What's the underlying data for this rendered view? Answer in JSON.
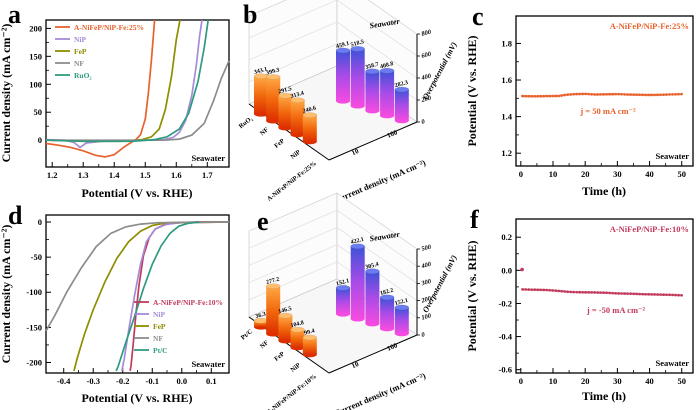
{
  "letters": [
    "a",
    "b",
    "c",
    "d",
    "e",
    "f"
  ],
  "chart_data": [
    {
      "id": "a",
      "type": "line",
      "xlabel": "Potential (V vs. RHE)",
      "ylabel": "Current density (mA cm⁻²)",
      "annotation": "Seawater",
      "xlim": [
        1.18,
        1.77
      ],
      "ylim": [
        -48,
        215
      ],
      "x_ticks": [
        "1.2",
        "1.3",
        "1.4",
        "1.5",
        "1.6",
        "1.7"
      ],
      "y_ticks": [
        "0",
        "50",
        "100",
        "150",
        "200"
      ],
      "legend_position": "top-left",
      "series": [
        {
          "name": "A-NiFeP/NiP-Fe:25%",
          "color": "#E8622D",
          "points": [
            [
              1.18,
              -6
            ],
            [
              1.22,
              -9
            ],
            [
              1.26,
              -13
            ],
            [
              1.3,
              -19
            ],
            [
              1.34,
              -27
            ],
            [
              1.37,
              -30
            ],
            [
              1.4,
              -26
            ],
            [
              1.43,
              -13
            ],
            [
              1.455,
              -4
            ],
            [
              1.47,
              1
            ],
            [
              1.485,
              10
            ],
            [
              1.5,
              38
            ],
            [
              1.51,
              85
            ],
            [
              1.52,
              145
            ],
            [
              1.53,
              215
            ]
          ]
        },
        {
          "name": "NiP",
          "color": "#A58BD8",
          "points": [
            [
              1.18,
              1
            ],
            [
              1.24,
              0
            ],
            [
              1.27,
              -4
            ],
            [
              1.29,
              -13
            ],
            [
              1.31,
              -5
            ],
            [
              1.36,
              -2
            ],
            [
              1.46,
              -1
            ],
            [
              1.56,
              1
            ],
            [
              1.59,
              5
            ],
            [
              1.61,
              14
            ],
            [
              1.63,
              35
            ],
            [
              1.65,
              80
            ],
            [
              1.665,
              135
            ],
            [
              1.675,
              185
            ],
            [
              1.683,
              215
            ]
          ]
        },
        {
          "name": "FeP",
          "color": "#8E8E00",
          "points": [
            [
              1.18,
              0
            ],
            [
              1.3,
              -2
            ],
            [
              1.42,
              -2
            ],
            [
              1.49,
              1
            ],
            [
              1.52,
              6
            ],
            [
              1.545,
              20
            ],
            [
              1.565,
              55
            ],
            [
              1.585,
              115
            ],
            [
              1.6,
              180
            ],
            [
              1.612,
              215
            ]
          ]
        },
        {
          "name": "NF",
          "color": "#8C8C8C",
          "points": [
            [
              1.18,
              0
            ],
            [
              1.4,
              0
            ],
            [
              1.56,
              0
            ],
            [
              1.61,
              2
            ],
            [
              1.65,
              9
            ],
            [
              1.69,
              30
            ],
            [
              1.72,
              70
            ],
            [
              1.745,
              110
            ],
            [
              1.77,
              142
            ]
          ]
        },
        {
          "name": "RuO₂",
          "color": "#2E9B80",
          "points": [
            [
              1.18,
              0
            ],
            [
              1.3,
              -2
            ],
            [
              1.46,
              -2
            ],
            [
              1.53,
              1
            ],
            [
              1.57,
              6
            ],
            [
              1.61,
              20
            ],
            [
              1.64,
              48
            ],
            [
              1.67,
              105
            ],
            [
              1.69,
              165
            ],
            [
              1.703,
              215
            ]
          ]
        }
      ]
    },
    {
      "id": "b",
      "type": "bar3d",
      "zlabel": "Overpotential (mV)",
      "axis_label": "Current density (mA cm⁻²)",
      "annotation": "Seawater",
      "categories": [
        "RuO₂",
        "NF",
        "FeP",
        "NiP",
        "A-NiFeP/NiP-Fe:25%"
      ],
      "zlim": [
        0,
        800
      ],
      "z_ticks": [
        "0",
        "200",
        "400",
        "600",
        "800"
      ],
      "series": [
        {
          "name": "10",
          "values": [
            343.1,
            399.3,
            291.5,
            313.4,
            240.6
          ],
          "gradient": [
            "#FFA845",
            "#F26A0D",
            "#DD2E00"
          ],
          "cap": "#FFBE6E"
        },
        {
          "name": "100",
          "values": [
            459.1,
            518.5,
            358.7,
            408.8,
            282.3
          ],
          "gradient": [
            "#3E52D8",
            "#A94BE8",
            "#F44BE0"
          ],
          "cap": "#6B7BF0"
        }
      ]
    },
    {
      "id": "c",
      "type": "line",
      "xlabel": "Time (h)",
      "ylabel": "Potential (V vs. RHE)",
      "annotation": "Seawater",
      "catalyst": "A-NiFeP/NiP-Fe:25%",
      "catalyst_color": "#E8622D",
      "j_label": "j = 50 mA cm⁻²",
      "j_color": "#E8622D",
      "xlim": [
        -1.5,
        53.5
      ],
      "ylim": [
        1.13,
        1.95
      ],
      "x_ticks": [
        "0",
        "10",
        "20",
        "30",
        "40",
        "50"
      ],
      "y_ticks": [
        "1.2",
        "1.4",
        "1.6",
        "1.8"
      ],
      "series": [
        {
          "name": "A-NiFeP/NiP-Fe:25%",
          "color": "#E8622D",
          "style": "dots",
          "points": [
            [
              0.5,
              1.512
            ],
            [
              4,
              1.511
            ],
            [
              8,
              1.512
            ],
            [
              12,
              1.513
            ],
            [
              14,
              1.519
            ],
            [
              17,
              1.523
            ],
            [
              20,
              1.524
            ],
            [
              23,
              1.521
            ],
            [
              26,
              1.522
            ],
            [
              30,
              1.523
            ],
            [
              33,
              1.521
            ],
            [
              36,
              1.52
            ],
            [
              40,
              1.518
            ],
            [
              43,
              1.519
            ],
            [
              46,
              1.521
            ],
            [
              50,
              1.523
            ]
          ]
        }
      ]
    },
    {
      "id": "d",
      "type": "line",
      "xlabel": "Potential (V vs. RHE)",
      "ylabel": "Current density (mA cm⁻²)",
      "annotation": "Seawater",
      "xlim": [
        -0.46,
        0.16
      ],
      "ylim": [
        -215,
        10
      ],
      "x_ticks": [
        "-0.4",
        "-0.3",
        "-0.2",
        "-0.1",
        "0.0",
        "0.1"
      ],
      "y_ticks": [
        "0",
        "-50",
        "-100",
        "-150",
        "-200"
      ],
      "legend_position": "center-right",
      "series": [
        {
          "name": "A-NiFeP/NiP-Fe:10%",
          "color": "#C23A5C",
          "points": [
            [
              0.16,
              0
            ],
            [
              0.05,
              0
            ],
            [
              -0.02,
              -1
            ],
            [
              -0.06,
              -4
            ],
            [
              -0.09,
              -10
            ],
            [
              -0.11,
              -22
            ],
            [
              -0.13,
              -48
            ],
            [
              -0.145,
              -90
            ],
            [
              -0.155,
              -130
            ],
            [
              -0.165,
              -175
            ],
            [
              -0.172,
              -205
            ],
            [
              -0.175,
              -212
            ]
          ]
        },
        {
          "name": "NiP",
          "color": "#A58BD8",
          "points": [
            [
              0.16,
              0
            ],
            [
              0.0,
              -1
            ],
            [
              -0.05,
              -3
            ],
            [
              -0.09,
              -10
            ],
            [
              -0.12,
              -28
            ],
            [
              -0.14,
              -60
            ],
            [
              -0.16,
              -105
            ],
            [
              -0.18,
              -155
            ],
            [
              -0.195,
              -195
            ],
            [
              -0.203,
              -212
            ]
          ]
        },
        {
          "name": "FeP",
          "color": "#8E8E00",
          "points": [
            [
              0.16,
              0
            ],
            [
              -0.05,
              -1
            ],
            [
              -0.1,
              -5
            ],
            [
              -0.14,
              -13
            ],
            [
              -0.18,
              -28
            ],
            [
              -0.22,
              -52
            ],
            [
              -0.26,
              -85
            ],
            [
              -0.3,
              -125
            ],
            [
              -0.33,
              -160
            ],
            [
              -0.355,
              -195
            ],
            [
              -0.365,
              -212
            ]
          ]
        },
        {
          "name": "NF",
          "color": "#8C8C8C",
          "points": [
            [
              0.16,
              0
            ],
            [
              -0.08,
              -1
            ],
            [
              -0.14,
              -3
            ],
            [
              -0.19,
              -7
            ],
            [
              -0.24,
              -16
            ],
            [
              -0.29,
              -35
            ],
            [
              -0.34,
              -65
            ],
            [
              -0.39,
              -100
            ],
            [
              -0.43,
              -133
            ],
            [
              -0.46,
              -155
            ]
          ]
        },
        {
          "name": "Pt/C",
          "color": "#2E9B80",
          "points": [
            [
              0.06,
              0
            ],
            [
              0.02,
              -2
            ],
            [
              -0.01,
              -6
            ],
            [
              -0.04,
              -16
            ],
            [
              -0.07,
              -34
            ],
            [
              -0.1,
              -60
            ],
            [
              -0.13,
              -95
            ],
            [
              -0.16,
              -135
            ],
            [
              -0.19,
              -172
            ],
            [
              -0.215,
              -205
            ],
            [
              -0.222,
              -212
            ]
          ]
        }
      ]
    },
    {
      "id": "e",
      "type": "bar3d",
      "zlabel": "Overpotential (mV)",
      "axis_label": "Current density (mA cm⁻²)",
      "annotation": "Seawater",
      "categories": [
        "Pt/C",
        "NF",
        "FeP",
        "NiP",
        "A-NiFeP/NiP-Fe:10%"
      ],
      "zlim": [
        0,
        500
      ],
      "z_ticks": [
        "0",
        "100",
        "200",
        "300",
        "400",
        "500"
      ],
      "series": [
        {
          "name": "10",
          "values": [
            36.3,
            277.2,
            146.5,
            104.8,
            99.4
          ],
          "gradient": [
            "#FFA845",
            "#F26A0D",
            "#DD2E00"
          ],
          "cap": "#FFBE6E"
        },
        {
          "name": "100",
          "values": [
            152.1,
            422.1,
            305.4,
            182.2,
            152.1
          ],
          "gradient": [
            "#3E52D8",
            "#A94BE8",
            "#F44BE0"
          ],
          "cap": "#6B7BF0"
        }
      ]
    },
    {
      "id": "f",
      "type": "line",
      "xlabel": "Time (h)",
      "ylabel": "Potential (V vs. RHE)",
      "annotation": "Seawater",
      "catalyst": "A-NiFeP/NiP-Fe:10%",
      "catalyst_color": "#C23A5C",
      "j_label": "j = -50 mA cm⁻²",
      "j_color": "#C23A5C",
      "xlim": [
        -1.5,
        53.5
      ],
      "ylim": [
        -0.62,
        0.31
      ],
      "x_ticks": [
        "0",
        "10",
        "20",
        "30",
        "40",
        "50"
      ],
      "y_ticks": [
        "0.2",
        "0.0",
        "-0.2",
        "-0.4",
        "-0.6"
      ],
      "series": [
        {
          "name": "start-point",
          "color": "#C23A5C",
          "style": "dots",
          "points": [
            [
              0.4,
              0.005
            ]
          ]
        },
        {
          "name": "A-NiFeP/NiP-Fe:10%",
          "color": "#C23A5C",
          "style": "dots",
          "points": [
            [
              0.5,
              -0.115
            ],
            [
              4,
              -0.117
            ],
            [
              8,
              -0.119
            ],
            [
              12,
              -0.125
            ],
            [
              15,
              -0.13
            ],
            [
              18,
              -0.132
            ],
            [
              22,
              -0.133
            ],
            [
              26,
              -0.135
            ],
            [
              30,
              -0.139
            ],
            [
              34,
              -0.141
            ],
            [
              38,
              -0.144
            ],
            [
              42,
              -0.146
            ],
            [
              46,
              -0.148
            ],
            [
              50,
              -0.151
            ]
          ]
        }
      ]
    }
  ]
}
